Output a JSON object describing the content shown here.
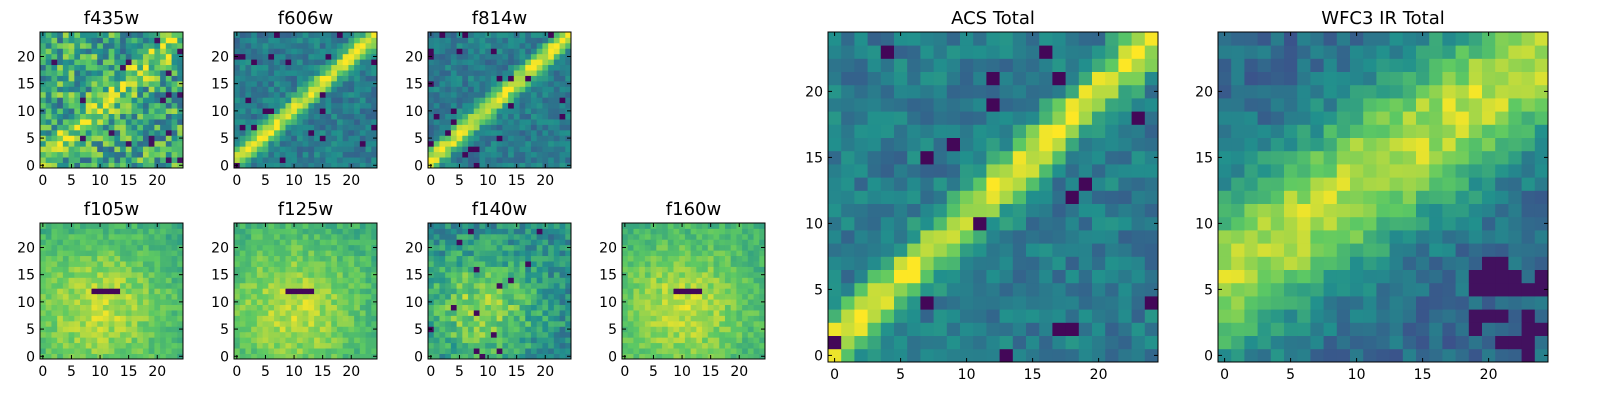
{
  "colormap": {
    "name": "viridis",
    "stops": [
      "#440154",
      "#3b528b",
      "#21908d",
      "#5dc963",
      "#fde725"
    ]
  },
  "chart_data": [
    {
      "type": "heatmap",
      "title": "f435w",
      "pattern": "noisy-diagonal",
      "xlim": [
        0,
        24
      ],
      "ylim": [
        0,
        24
      ],
      "xticks": [
        "0",
        "5",
        "10",
        "15",
        "20"
      ],
      "yticks": [
        "0",
        "5",
        "10",
        "15",
        "20"
      ],
      "grid": false
    },
    {
      "type": "heatmap",
      "title": "f606w",
      "pattern": "diagonal-streak",
      "xlim": [
        0,
        24
      ],
      "ylim": [
        0,
        24
      ],
      "xticks": [
        "0",
        "5",
        "10",
        "15",
        "20"
      ],
      "yticks": [
        "0",
        "5",
        "10",
        "15",
        "20"
      ],
      "grid": false
    },
    {
      "type": "heatmap",
      "title": "f814w",
      "pattern": "diagonal-streak",
      "xlim": [
        0,
        24
      ],
      "ylim": [
        0,
        24
      ],
      "xticks": [
        "0",
        "5",
        "10",
        "15",
        "20"
      ],
      "yticks": [
        "0",
        "5",
        "10",
        "15",
        "20"
      ],
      "grid": false
    },
    {
      "type": "heatmap",
      "title": "f105w",
      "pattern": "diffuse-bright",
      "xlim": [
        0,
        24
      ],
      "ylim": [
        0,
        24
      ],
      "xticks": [
        "0",
        "5",
        "10",
        "15",
        "20"
      ],
      "yticks": [
        "0",
        "5",
        "10",
        "15",
        "20"
      ],
      "grid": false
    },
    {
      "type": "heatmap",
      "title": "f125w",
      "pattern": "diffuse-bright",
      "xlim": [
        0,
        24
      ],
      "ylim": [
        0,
        24
      ],
      "xticks": [
        "0",
        "5",
        "10",
        "15",
        "20"
      ],
      "yticks": [
        "0",
        "5",
        "10",
        "15",
        "20"
      ],
      "grid": false
    },
    {
      "type": "heatmap",
      "title": "f140w",
      "pattern": "diffuse-mixed",
      "xlim": [
        0,
        24
      ],
      "ylim": [
        0,
        24
      ],
      "xticks": [
        "0",
        "5",
        "10",
        "15",
        "20"
      ],
      "yticks": [
        "0",
        "5",
        "10",
        "15",
        "20"
      ],
      "grid": false
    },
    {
      "type": "heatmap",
      "title": "f160w",
      "pattern": "diffuse-bright",
      "xlim": [
        0,
        24
      ],
      "ylim": [
        0,
        24
      ],
      "xticks": [
        "0",
        "5",
        "10",
        "15",
        "20"
      ],
      "yticks": [
        "0",
        "5",
        "10",
        "15",
        "20"
      ],
      "grid": false
    },
    {
      "type": "heatmap",
      "title": "ACS Total",
      "pattern": "diagonal-streak",
      "xlim": [
        0,
        24
      ],
      "ylim": [
        0,
        24
      ],
      "xticks": [
        "0",
        "5",
        "10",
        "15",
        "20"
      ],
      "yticks": [
        "0",
        "5",
        "10",
        "15",
        "20"
      ],
      "grid": false
    },
    {
      "type": "heatmap",
      "title": "WFC3 IR Total",
      "pattern": "diffuse-band",
      "xlim": [
        0,
        24
      ],
      "ylim": [
        0,
        24
      ],
      "xticks": [
        "0",
        "5",
        "10",
        "15",
        "20"
      ],
      "yticks": [
        "0",
        "5",
        "10",
        "15",
        "20"
      ],
      "grid": false
    }
  ]
}
